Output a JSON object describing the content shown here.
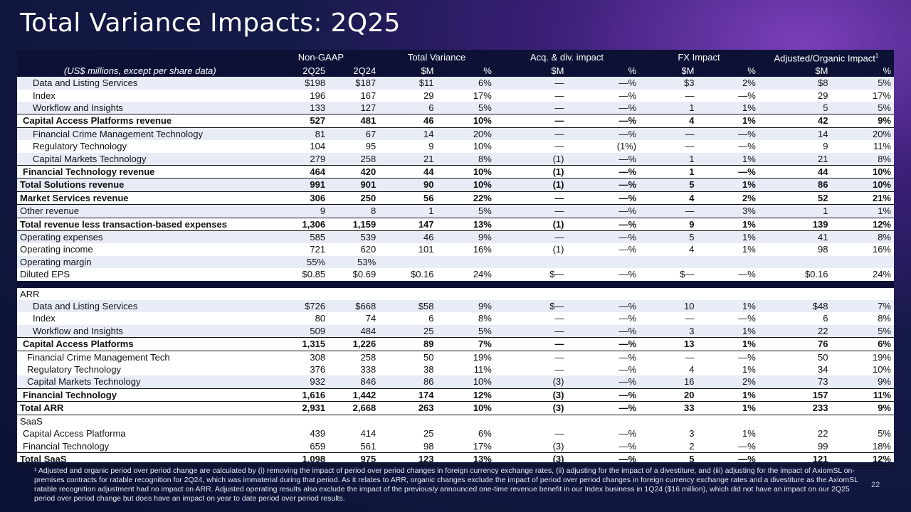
{
  "title": "Total Variance Impacts: 2Q25",
  "header": {
    "groups": [
      "Non-GAAP",
      "Total Variance",
      "Acq. & div. impact",
      "FX Impact",
      "Adjusted/Organic Impact"
    ],
    "footnote_mark": "1",
    "subtitle": "(US$ millions, except per share data)",
    "cols": [
      "2Q25",
      "2Q24",
      "$M",
      "%",
      "$M",
      "%",
      "$M",
      "%",
      "$M",
      "%"
    ]
  },
  "rows": [
    {
      "label": "Data and Listing Services",
      "v": [
        "$198",
        "$187",
        "$11",
        "6%",
        "—",
        "—%",
        "$3",
        "2%",
        "$8",
        "5%"
      ]
    },
    {
      "label": "Index",
      "v": [
        "196",
        "167",
        "29",
        "17%",
        "—",
        "—%",
        "—",
        "—%",
        "29",
        "17%"
      ]
    },
    {
      "label": "Workflow and Insights",
      "v": [
        "133",
        "127",
        "6",
        "5%",
        "—",
        "—%",
        "1",
        "1%",
        "5",
        "5%"
      ]
    },
    {
      "label": "Capital Access Platforms revenue",
      "v": [
        "527",
        "481",
        "46",
        "10%",
        "—",
        "—%",
        "4",
        "1%",
        "42",
        "9%"
      ]
    },
    {
      "label": "Financial Crime Management Technology",
      "v": [
        "81",
        "67",
        "14",
        "20%",
        "—",
        "—%",
        "—",
        "—%",
        "14",
        "20%"
      ]
    },
    {
      "label": "Regulatory Technology",
      "v": [
        "104",
        "95",
        "9",
        "10%",
        "—",
        "(1%)",
        "—",
        "—%",
        "9",
        "11%"
      ]
    },
    {
      "label": "Capital Markets Technology",
      "v": [
        "279",
        "258",
        "21",
        "8%",
        "(1)",
        "—%",
        "1",
        "1%",
        "21",
        "8%"
      ]
    },
    {
      "label": "Financial Technology revenue",
      "v": [
        "464",
        "420",
        "44",
        "10%",
        "(1)",
        "—%",
        "1",
        "—%",
        "44",
        "10%"
      ]
    },
    {
      "label": "Total Solutions revenue",
      "v": [
        "991",
        "901",
        "90",
        "10%",
        "(1)",
        "—%",
        "5",
        "1%",
        "86",
        "10%"
      ]
    },
    {
      "label": "Market Services revenue",
      "v": [
        "306",
        "250",
        "56",
        "22%",
        "—",
        "—%",
        "4",
        "2%",
        "52",
        "21%"
      ]
    },
    {
      "label": "Other revenue",
      "v": [
        "9",
        "8",
        "1",
        "5%",
        "—",
        "—%",
        "—",
        "3%",
        "1",
        "1%"
      ]
    },
    {
      "label": "Total revenue less transaction-based expenses",
      "v": [
        "1,306",
        "1,159",
        "147",
        "13%",
        "(1)",
        "—%",
        "9",
        "1%",
        "139",
        "12%"
      ]
    },
    {
      "label": "Operating expenses",
      "v": [
        "585",
        "539",
        "46",
        "9%",
        "—",
        "—%",
        "5",
        "1%",
        "41",
        "8%"
      ]
    },
    {
      "label": "Operating income",
      "v": [
        "721",
        "620",
        "101",
        "16%",
        "(1)",
        "—%",
        "4",
        "1%",
        "98",
        "16%"
      ]
    },
    {
      "label": "Operating margin",
      "v": [
        "55%",
        "53%",
        "",
        "",
        "",
        "",
        "",
        "",
        "",
        ""
      ]
    },
    {
      "label": "Diluted EPS",
      "v": [
        "$0.85",
        "$0.69",
        "$0.16",
        "24%",
        "$—",
        "—%",
        "$—",
        "—%",
        "$0.16",
        "24%"
      ]
    }
  ],
  "arr_label": "ARR",
  "arr_rows": [
    {
      "label": "Data and Listing Services",
      "v": [
        "$726",
        "$668",
        "$58",
        "9%",
        "$—",
        "—%",
        "10",
        "1%",
        "$48",
        "7%"
      ]
    },
    {
      "label": "Index",
      "v": [
        "80",
        "74",
        "6",
        "8%",
        "—",
        "—%",
        "—",
        "—%",
        "6",
        "8%"
      ]
    },
    {
      "label": "Workflow and Insights",
      "v": [
        "509",
        "484",
        "25",
        "5%",
        "—",
        "—%",
        "3",
        "1%",
        "22",
        "5%"
      ]
    },
    {
      "label": "Capital Access Platforms",
      "v": [
        "1,315",
        "1,226",
        "89",
        "7%",
        "—",
        "—%",
        "13",
        "1%",
        "76",
        "6%"
      ]
    },
    {
      "label": "Financial Crime Management Tech",
      "v": [
        "308",
        "258",
        "50",
        "19%",
        "—",
        "—%",
        "—",
        "—%",
        "50",
        "19%"
      ]
    },
    {
      "label": "Regulatory Technology",
      "v": [
        "376",
        "338",
        "38",
        "11%",
        "—",
        "—%",
        "4",
        "1%",
        "34",
        "10%"
      ]
    },
    {
      "label": "Capital Markets Technology",
      "v": [
        "932",
        "846",
        "86",
        "10%",
        "(3)",
        "—%",
        "16",
        "2%",
        "73",
        "9%"
      ]
    },
    {
      "label": "Financial Technology",
      "v": [
        "1,616",
        "1,442",
        "174",
        "12%",
        "(3)",
        "—%",
        "20",
        "1%",
        "157",
        "11%"
      ]
    },
    {
      "label": "Total ARR",
      "v": [
        "2,931",
        "2,668",
        "263",
        "10%",
        "(3)",
        "—%",
        "33",
        "1%",
        "233",
        "9%"
      ]
    }
  ],
  "saas_label": "SaaS",
  "saas_rows": [
    {
      "label": "Capital Access Platforma",
      "v": [
        "439",
        "414",
        "25",
        "6%",
        "—",
        "—%",
        "3",
        "1%",
        "22",
        "5%"
      ]
    },
    {
      "label": "Financial Technology",
      "v": [
        "659",
        "561",
        "98",
        "17%",
        "(3)",
        "—%",
        "2",
        "—%",
        "99",
        "18%"
      ]
    },
    {
      "label": "Total SaaS",
      "v": [
        "1,098",
        "975",
        "123",
        "13%",
        "(3)",
        "—%",
        "5",
        "—%",
        "121",
        "12%"
      ]
    }
  ],
  "footnote": "¹ Adjusted and organic period over period change are calculated by (i) removing the impact of period over period changes in foreign currency exchange rates, (ii) adjusting for the impact of a divestiture, and (iii) adjusting for the impact of AxiomSL on-premises contracts for ratable recognition for 2Q24, which was immaterial during that period.  As it relates to ARR, organic changes exclude the impact of period over period changes in foreign currency exchange rates and a divestiture as the AxiomSL ratable recognition adjustment had no impact on ARR. Adjusted operating results also exclude the impact of the previously announced one-time revenue benefit in our Index business in 1Q24 ($16 million), which did not have an impact on our 2Q25 period over period change but does have an impact on year to date period over period results.",
  "page_number": "22"
}
